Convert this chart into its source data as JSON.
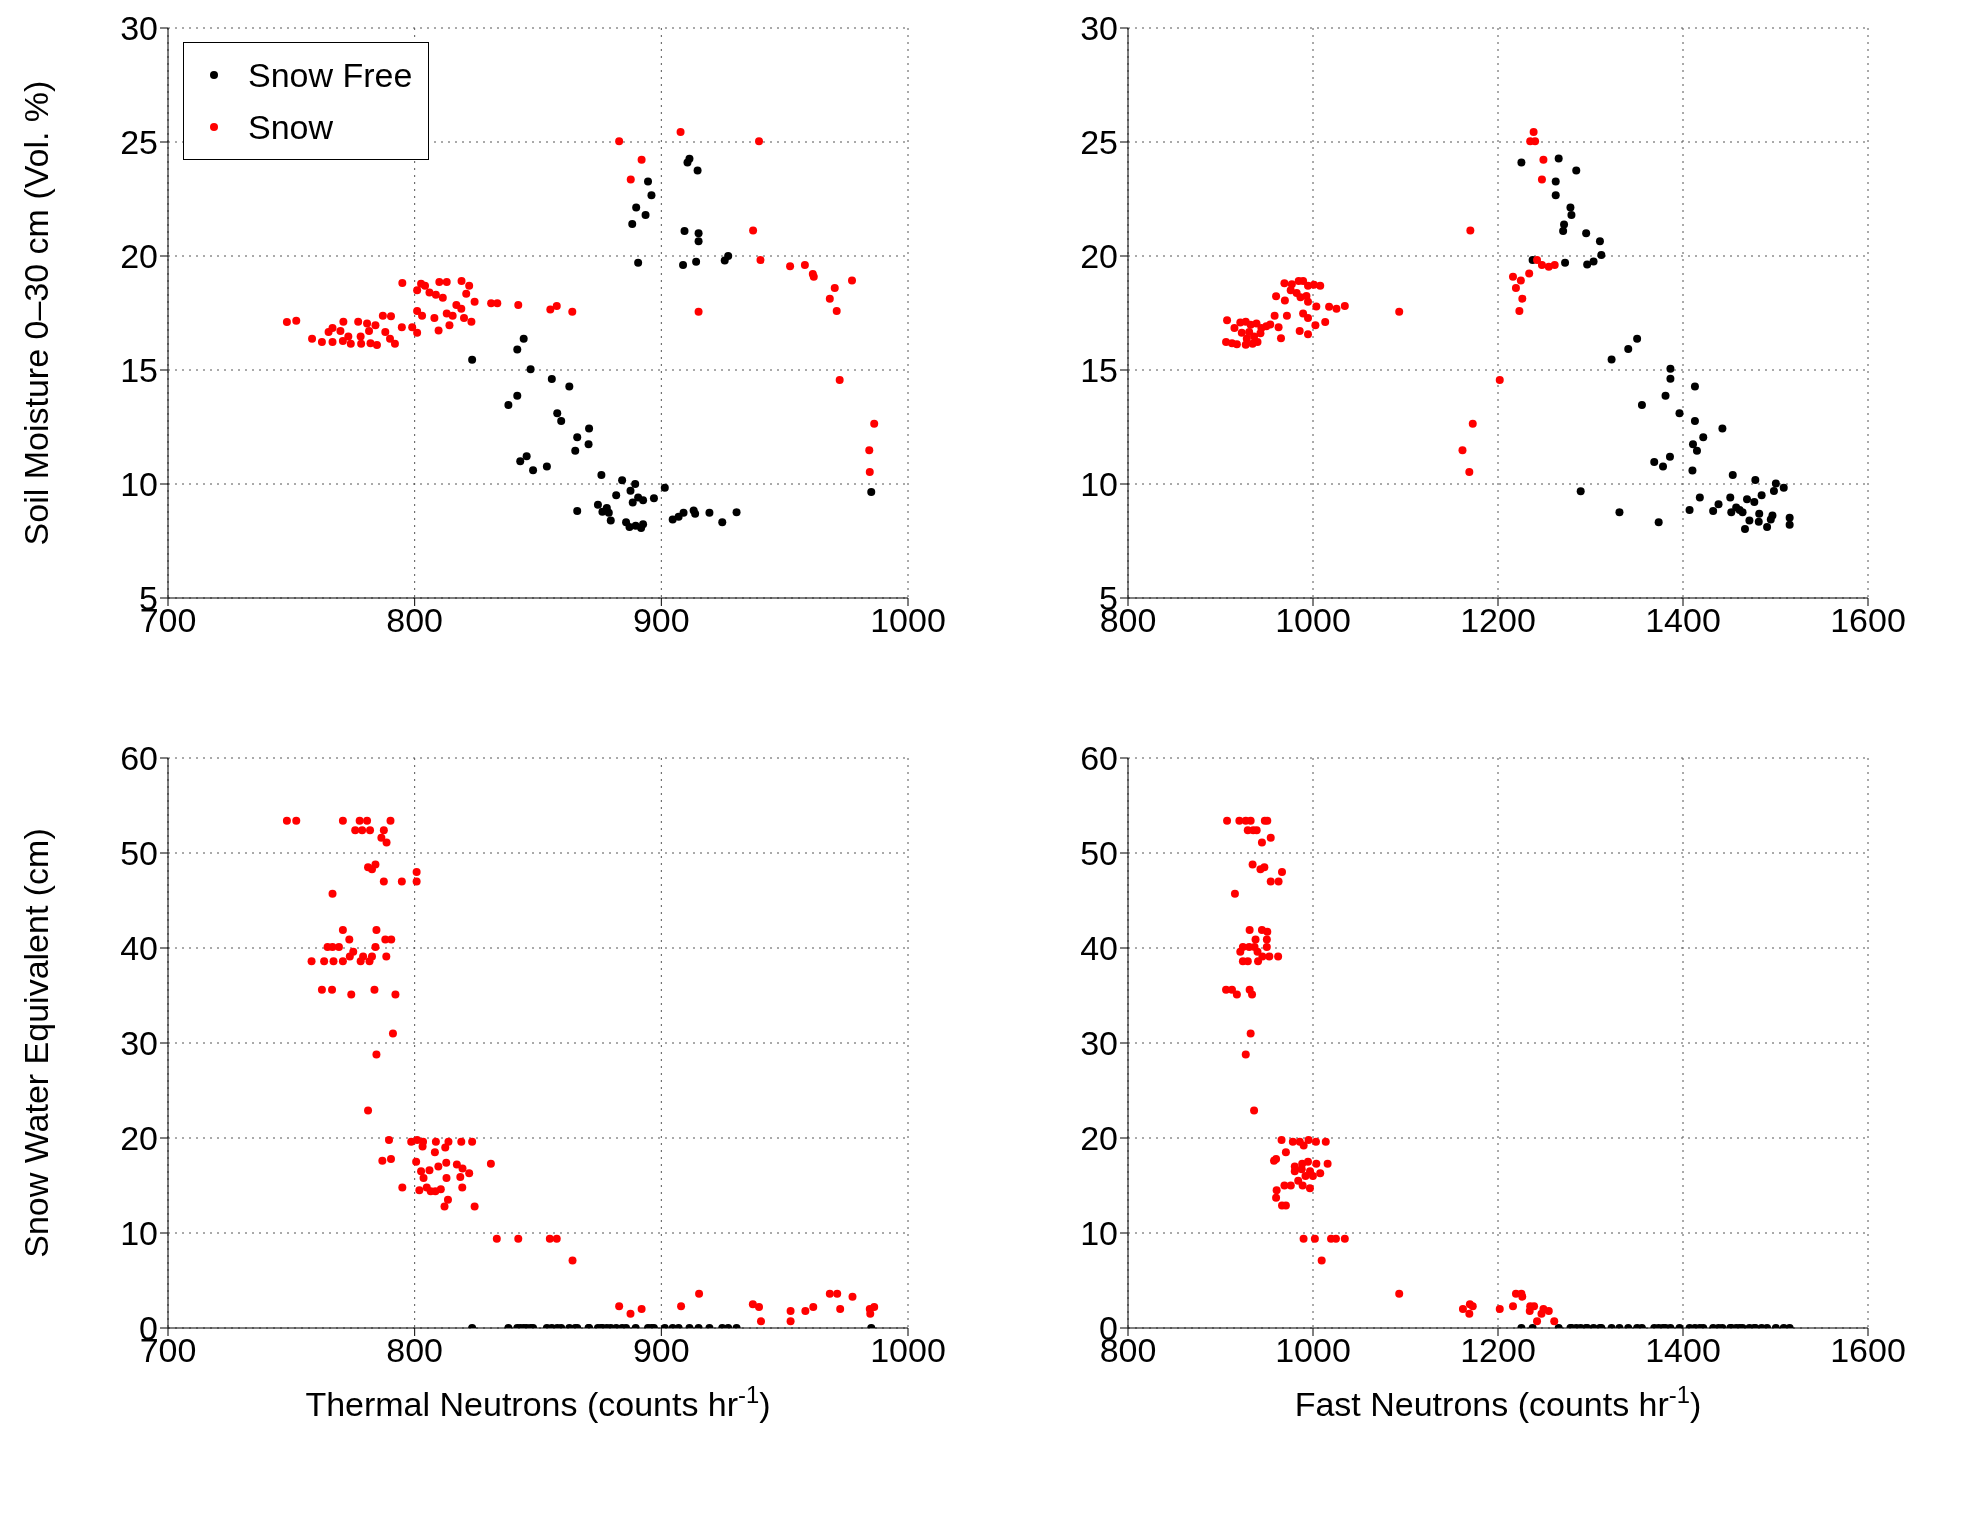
{
  "chart_data": [
    {
      "type": "scatter",
      "ylabel": "Soil Moisture 0–30 cm (Vol. %)",
      "xlim": [
        700,
        1000
      ],
      "xticks": [
        700,
        800,
        900,
        1000
      ],
      "ylim": [
        5,
        30
      ],
      "yticks": [
        5,
        10,
        15,
        20,
        25,
        30
      ],
      "grid": true,
      "legend": "top left",
      "marker": "circle",
      "series": [
        {
          "name": "Snow Free",
          "color": "#000000",
          "x": [
            894.6,
            896.0,
            889.8,
            893.6,
            888.2,
            890.6,
            910.6,
            911.4,
            914.7,
            909.4,
            915.1,
            915.1,
            908.8,
            914.1,
            925.7,
            927.1,
            844.2,
            841.6,
            823.3,
            847.0,
            855.6,
            862.7,
            841.6,
            838.0,
            857.8,
            859.4,
            870.7,
            865.9,
            870.5,
            865.1,
            845.4,
            842.8,
            848.0,
            853.6,
            875.7,
            884.1,
            889.4,
            901.4,
            887.5,
            881.7,
            890.6,
            892.6,
            897.0,
            888.4,
            874.3,
            877.9,
            876.1,
            878.7,
            865.9,
            879.5,
            885.7,
            887.1,
            889.6,
            891.8,
            892.6,
            904.6,
            907.0,
            909.0,
            913.1,
            913.7,
            919.5,
            924.7,
            930.5,
            985.1
          ],
          "values": [
            23.27,
            22.66,
            22.13,
            21.8,
            21.4,
            19.7,
            24.1,
            24.26,
            23.75,
            21.1,
            21.0,
            20.65,
            19.6,
            19.75,
            19.8,
            20.0,
            16.37,
            15.9,
            15.45,
            15.03,
            14.6,
            14.28,
            13.87,
            13.47,
            13.1,
            12.76,
            12.43,
            12.05,
            11.74,
            11.46,
            11.22,
            11.0,
            10.6,
            10.77,
            10.4,
            10.16,
            10.0,
            9.84,
            9.7,
            9.51,
            9.41,
            9.29,
            9.37,
            9.19,
            9.09,
            8.95,
            8.78,
            8.74,
            8.82,
            8.4,
            8.32,
            8.11,
            8.17,
            8.07,
            8.23,
            8.44,
            8.56,
            8.74,
            8.84,
            8.7,
            8.74,
            8.32,
            8.76,
            9.65
          ]
        },
        {
          "name": "Snow",
          "color": "#ff0000",
          "x": [
            882.9,
            907.8,
            939.6,
            892.0,
            887.6,
            937.2,
            940.2,
            952.2,
            958.2,
            961.4,
            961.8,
            977.3,
            970.3,
            968.3,
            971.1,
            915.1,
            972.3,
            986.3,
            984.3,
            984.5,
            863.9,
            855.0,
            857.6,
            842.0,
            831.0,
            833.5,
            824.3,
            795.0,
            802.6,
            804.2,
            810.0,
            813.0,
            819.0,
            822.1,
            801.0,
            806.0,
            808.6,
            811.4,
            820.9,
            816.9,
            818.9,
            801.0,
            803.0,
            808.0,
            813.0,
            815.4,
            820.0,
            823.0,
            814.1,
            809.7,
            799.0,
            801.0,
            794.8,
            748.2,
            752.0,
            758.4,
            762.4,
            765.1,
            766.7,
            766.7,
            769.9,
            771.1,
            770.9,
            773.1,
            774.1,
            777.1,
            778.1,
            778.3,
            780.7,
            781.5,
            782.1,
            784.1,
            784.7,
            787.1,
            788.1,
            790.4,
            790.0,
            792.0
          ],
          "values": [
            25.03,
            25.44,
            25.03,
            24.22,
            23.35,
            21.12,
            19.82,
            19.55,
            19.6,
            19.21,
            19.09,
            18.92,
            18.6,
            18.13,
            17.59,
            17.55,
            14.56,
            12.64,
            11.48,
            10.53,
            17.55,
            17.65,
            17.81,
            17.85,
            17.93,
            17.93,
            17.99,
            18.82,
            18.78,
            18.7,
            18.86,
            18.86,
            18.9,
            18.7,
            18.5,
            18.4,
            18.3,
            18.17,
            18.34,
            17.85,
            17.69,
            17.59,
            17.38,
            17.28,
            17.48,
            17.38,
            17.28,
            17.12,
            16.96,
            16.73,
            16.88,
            16.63,
            16.88,
            17.1,
            17.16,
            16.37,
            16.23,
            16.67,
            16.84,
            16.23,
            16.71,
            17.12,
            16.27,
            16.47,
            16.15,
            17.12,
            16.47,
            16.15,
            17.04,
            16.71,
            16.17,
            16.96,
            16.1,
            17.38,
            16.67,
            17.36,
            16.37,
            16.15
          ]
        }
      ]
    },
    {
      "type": "scatter",
      "xlim": [
        800,
        1600
      ],
      "xticks": [
        800,
        1000,
        1200,
        1400,
        1600
      ],
      "ylim": [
        5,
        30
      ],
      "yticks": [
        5,
        10,
        15,
        20,
        25,
        30
      ],
      "grid": true,
      "marker": "circle",
      "series": [
        {
          "color": "#000000",
          "x": [
            1225.3,
            1265.6,
            1284.6,
            1262.4,
            1262.4,
            1278.3,
            1279.4,
            1271.4,
            1270.4,
            1295.3,
            1310.2,
            1311.7,
            1303.3,
            1296.4,
            1272.5,
            1237.4,
            1350.4,
            1340.8,
            1322.8,
            1386.4,
            1386.4,
            1412.9,
            1381.1,
            1355.6,
            1396.2,
            1412.9,
            1442.6,
            1421.9,
            1410.8,
            1415.1,
            1385.9,
            1368.9,
            1378.4,
            1410.2,
            1453.8,
            1478.2,
            1500.4,
            1508.9,
            1289.4,
            1418.2,
            1485.0,
            1498.3,
            1469.2,
            1451.1,
            1477.1,
            1438.4,
            1457.5,
            1461.2,
            1407.1,
            1432.6,
            1452.2,
            1464.4,
            1331.3,
            1482.4,
            1496.7,
            1515.3,
            1471.8,
            1481.9,
            1373.7,
            1494.9,
            1515.3,
            1490.9,
            1467.0
          ],
          "values": [
            24.1,
            24.28,
            23.75,
            23.27,
            22.66,
            22.13,
            21.8,
            21.38,
            21.1,
            21.0,
            20.65,
            20.04,
            19.76,
            19.63,
            19.7,
            19.82,
            16.37,
            15.92,
            15.46,
            15.05,
            14.62,
            14.28,
            13.87,
            13.47,
            13.1,
            12.76,
            12.43,
            12.05,
            11.74,
            11.46,
            11.2,
            10.97,
            10.77,
            10.59,
            10.4,
            10.18,
            10.02,
            9.84,
            9.68,
            9.41,
            9.51,
            9.69,
            9.33,
            9.41,
            9.21,
            9.11,
            8.97,
            8.86,
            8.86,
            8.82,
            8.76,
            8.76,
            8.76,
            8.7,
            8.62,
            8.52,
            8.4,
            8.34,
            8.32,
            8.44,
            8.21,
            8.11,
            8.03
          ]
        },
        {
          "color": "#ff0000",
          "x": [
            1238.5,
            1234.8,
            1240.1,
            1249.1,
            1247.5,
            1170.1,
            1242.2,
            1247.5,
            1254.9,
            1261.3,
            1233.7,
            1216.2,
            1224.7,
            1219.4,
            1226.3,
            1223.1,
            1093.2,
            1201.9,
            1172.7,
            1161.6,
            1169.0,
            969.1,
            977.1,
            984.5,
            989.3,
            994.6,
            1001.0,
            1007.8,
            975.9,
            982.3,
            986.5,
            992.9,
            960.1,
            969.6,
            994.6,
            1003.6,
            1017.4,
            1034.4,
            1025.4,
            958.5,
            971.8,
            989.3,
            994.6,
            1013.2,
            1002.6,
            985.6,
            994.6,
            962.8,
            965.4,
            907.1,
            915.1,
            921.4,
            927.3,
            932.6,
            938.9,
            944.2,
            949.5,
            953.8,
            923.0,
            931.0,
            936.3,
            943.2,
            906.0,
            912.4,
            917.7,
            927.3,
            934.7,
            940.0,
            928.4
          ],
          "values": [
            25.44,
            25.03,
            25.03,
            24.22,
            23.35,
            21.12,
            19.82,
            19.61,
            19.53,
            19.61,
            19.23,
            19.09,
            18.92,
            18.6,
            18.13,
            17.59,
            17.55,
            14.56,
            12.64,
            11.48,
            10.53,
            18.8,
            18.76,
            18.9,
            18.9,
            18.7,
            18.74,
            18.7,
            18.5,
            18.38,
            18.19,
            18.25,
            18.23,
            18.05,
            17.99,
            17.79,
            17.77,
            17.81,
            17.69,
            17.38,
            17.38,
            17.48,
            17.28,
            17.1,
            16.96,
            16.71,
            16.57,
            16.88,
            16.39,
            17.18,
            16.84,
            17.08,
            17.12,
            16.98,
            17.04,
            16.84,
            16.92,
            17.0,
            16.63,
            16.67,
            16.47,
            16.61,
            16.23,
            16.17,
            16.13,
            16.11,
            16.15,
            16.23,
            16.37
          ]
        }
      ]
    },
    {
      "type": "scatter",
      "xlabel": "Thermal Neutrons (counts hr$^{-1}$)",
      "ylabel": "Snow Water Equivalent (cm)",
      "xlim": [
        700,
        1000
      ],
      "xticks": [
        700,
        800,
        900,
        1000
      ],
      "ylim": [
        0,
        60
      ],
      "yticks": [
        0,
        10,
        20,
        30,
        40,
        50,
        60
      ],
      "grid": true,
      "marker": "circle",
      "series": [
        {
          "color": "#000000",
          "x": [
            894.6,
            896.0,
            911.4,
            915.1,
            927.1,
            844.2,
            841.6,
            823.3,
            847.0,
            855.6,
            862.7,
            838.0,
            857.8,
            859.4,
            870.7,
            865.9,
            870.5,
            865.1,
            845.4,
            842.8,
            848.0,
            853.6,
            875.7,
            884.1,
            901.4,
            881.7,
            897.0,
            874.3,
            877.9,
            876.1,
            879.5,
            885.7,
            889.6,
            904.6,
            907.0,
            919.5,
            924.7,
            930.5,
            985.1
          ],
          "values": [
            0,
            0,
            0,
            0,
            0,
            0,
            0,
            0,
            0,
            0,
            0,
            0,
            0,
            0,
            0,
            0,
            0,
            0,
            0,
            0,
            0,
            0,
            0,
            0,
            0,
            0,
            0,
            0,
            0,
            0,
            0,
            0,
            0,
            0,
            0,
            0,
            0,
            0,
            0
          ]
        },
        {
          "color": "#ff0000",
          "x": [
            748.2,
            752.0,
            770.9,
            777.7,
            780.7,
            790.2,
            775.9,
            778.7,
            781.9,
            787.5,
            786.5,
            788.6,
            781.1,
            782.7,
            784.1,
            787.5,
            794.8,
            800.8,
            800.8,
            766.7,
            770.9,
            784.5,
            773.5,
            788.1,
            790.5,
            764.7,
            766.7,
            769.3,
            784.1,
            775.1,
            773.7,
            779.1,
            782.7,
            788.5,
            758.2,
            763.3,
            767.1,
            770.9,
            778.1,
            781.7,
            762.4,
            766.5,
            783.7,
            774.3,
            792.2,
            791.2,
            784.5,
            781.1,
            789.6,
            798.6,
            801.0,
            803.4,
            808.6,
            813.7,
            818.9,
            823.3,
            803.2,
            808.2,
            812.4,
            786.9,
            790.4,
            800.6,
            830.9,
            802.6,
            806.0,
            809.6,
            812.8,
            817.1,
            819.4,
            822.1,
            803.6,
            812.9,
            818.5,
            795.0,
            801.9,
            804.9,
            806.5,
            808.4,
            810.6,
            819.3,
            813.5,
            812.1,
            824.3,
            833.3,
            842.0,
            854.8,
            857.6,
            864.0,
            882.9,
            887.5,
            892.0,
            908.0,
            915.3,
            937.1,
            939.6,
            940.4,
            952.4,
            952.4,
            958.4,
            961.6,
            968.3,
            971.3,
            972.5,
            977.5,
            984.5,
            984.7,
            986.3
          ],
          "values": [
            53.4,
            53.4,
            53.4,
            53.4,
            53.4,
            53.4,
            52.4,
            52.4,
            52.4,
            52.4,
            51.6,
            51.1,
            48.5,
            48.3,
            48.8,
            47.0,
            47.0,
            48.0,
            47.0,
            45.7,
            41.9,
            41.9,
            40.9,
            40.9,
            40.9,
            40.1,
            40.1,
            40.1,
            40.1,
            39.6,
            39.1,
            39.1,
            39.1,
            39.1,
            38.6,
            38.6,
            38.6,
            38.6,
            38.6,
            38.6,
            35.6,
            35.6,
            35.6,
            35.1,
            35.1,
            31.0,
            28.8,
            22.9,
            19.8,
            19.6,
            19.8,
            19.6,
            19.6,
            19.6,
            19.6,
            19.6,
            19.1,
            18.5,
            19.0,
            17.6,
            17.8,
            17.5,
            17.3,
            16.5,
            16.6,
            17.0,
            17.4,
            17.2,
            16.8,
            16.3,
            15.8,
            15.8,
            15.9,
            14.8,
            14.5,
            14.8,
            14.4,
            14.4,
            14.6,
            14.8,
            13.5,
            12.8,
            12.8,
            9.4,
            9.4,
            9.4,
            9.4,
            7.1,
            2.3,
            1.5,
            2.0,
            2.3,
            3.6,
            2.5,
            2.2,
            0.7,
            1.8,
            0.7,
            1.8,
            2.2,
            3.6,
            3.6,
            2.0,
            3.3,
            2.0,
            1.5,
            2.2
          ]
        }
      ]
    },
    {
      "type": "scatter",
      "xlabel": "Fast Neutrons (counts hr$^{-1}$)",
      "xlim": [
        800,
        1600
      ],
      "xticks": [
        800,
        1000,
        1200,
        1400,
        1600
      ],
      "ylim": [
        0,
        60
      ],
      "yticks": [
        0,
        10,
        20,
        30,
        40,
        50,
        60
      ],
      "grid": true,
      "marker": "circle",
      "series": [
        {
          "color": "#000000",
          "x": [
            1225.3,
            1265.6,
            1284.6,
            1278.3,
            1279.4,
            1295.3,
            1310.2,
            1311.7,
            1303.3,
            1296.4,
            1237.4,
            1350.4,
            1340.8,
            1322.8,
            1386.4,
            1412.9,
            1381.1,
            1355.6,
            1396.2,
            1442.6,
            1421.9,
            1368.9,
            1378.4,
            1478.2,
            1500.4,
            1508.9,
            1289.4,
            1418.2,
            1485.0,
            1451.1,
            1477.1,
            1438.4,
            1457.5,
            1461.2,
            1407.1,
            1432.6,
            1452.2,
            1464.4,
            1331.3,
            1471.8,
            1373.7,
            1515.3,
            1490.9
          ],
          "values": [
            0,
            0,
            0,
            0,
            0,
            0,
            0,
            0,
            0,
            0,
            0,
            0,
            0,
            0,
            0,
            0,
            0,
            0,
            0,
            0,
            0,
            0,
            0,
            0,
            0,
            0,
            0,
            0,
            0,
            0,
            0,
            0,
            0,
            0,
            0,
            0,
            0,
            0,
            0,
            0,
            0,
            0,
            0
          ]
        },
        {
          "color": "#ff0000",
          "x": [
            907.1,
            920.4,
            927.3,
            932.6,
            947.9,
            950.6,
            929.5,
            935.4,
            939.1,
            944.8,
            954.3,
            934.7,
            943.2,
            947.4,
            954.3,
            962.8,
            966.5,
            915.6,
            931.5,
            944.8,
            950.6,
            937.9,
            950.1,
            924.2,
            931.0,
            936.8,
            950.1,
            921.4,
            940.0,
            945.3,
            952.8,
            962.3,
            924.2,
            929.5,
            940.6,
            906.0,
            912.4,
            931.5,
            917.7,
            934.1,
            932.6,
            927.3,
            936.3,
            966.0,
            978.2,
            985.7,
            989.9,
            995.2,
            1003.2,
            1013.8,
            970.7,
            957.8,
            960.1,
            980.3,
            988.3,
            994.6,
            1003.6,
            1015.8,
            980.3,
            987.8,
            996.8,
            1007.8,
            991.9,
            999.9,
            969.1,
            976.0,
            984.0,
            988.8,
            996.7,
            960.7,
            960.1,
            966.5,
            970.7,
            989.8,
            1002.0,
            1019.5,
            1024.8,
            1034.4,
            1009.4,
            1093.2,
            1162.1,
            1169.6,
            1172.7,
            1169.0,
            1201.9,
            1216.2,
            1219.4,
            1225.3,
            1226.3,
            1234.8,
            1239.0,
            1234.3,
            1249.1,
            1247.0,
            1254.9,
            1242.2,
            1260.8
          ],
          "values": [
            53.4,
            53.4,
            53.4,
            53.4,
            53.4,
            53.4,
            52.4,
            52.4,
            52.4,
            51.1,
            51.6,
            48.8,
            48.3,
            48.5,
            47.0,
            47.0,
            48.0,
            45.7,
            41.9,
            41.9,
            41.7,
            40.9,
            40.9,
            40.1,
            40.1,
            40.1,
            40.1,
            39.6,
            39.6,
            39.1,
            39.1,
            39.1,
            38.6,
            38.6,
            38.6,
            35.6,
            35.6,
            35.6,
            35.1,
            35.1,
            31.0,
            28.8,
            22.9,
            19.8,
            19.6,
            19.6,
            19.2,
            19.8,
            19.6,
            19.6,
            18.5,
            17.6,
            17.8,
            17.0,
            17.3,
            17.5,
            17.3,
            17.3,
            16.5,
            16.7,
            16.5,
            16.3,
            16.0,
            16.0,
            15.0,
            15.0,
            15.5,
            15.0,
            14.7,
            14.5,
            13.7,
            12.9,
            12.9,
            9.4,
            9.4,
            9.4,
            9.4,
            9.4,
            7.1,
            3.6,
            2.0,
            2.5,
            2.3,
            1.5,
            2.0,
            2.3,
            3.6,
            3.6,
            3.3,
            2.3,
            2.3,
            1.8,
            2.0,
            1.5,
            1.8,
            0.7,
            0.7
          ]
        }
      ]
    }
  ]
}
